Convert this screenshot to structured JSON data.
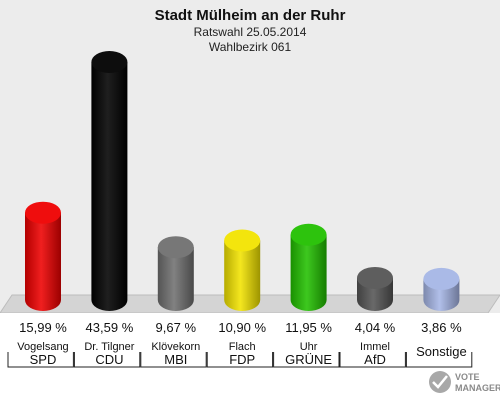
{
  "header": {
    "title": "Stadt Mülheim an der Ruhr",
    "subtitle": "Ratswahl 25.05.2014",
    "district": "Wahlbezirk 061"
  },
  "watermark": {
    "line1": "VOTE",
    "line2": "MANAGER"
  },
  "chart_data": {
    "type": "bar",
    "title": "Stadt Mülheim an der Ruhr",
    "subtitle": "Ratswahl 25.05.2014 · Wahlbezirk 061",
    "ylim": [
      0,
      45
    ],
    "grid": false,
    "legend": "none",
    "bars": [
      {
        "candidate": "Vogelsang",
        "party": "SPD",
        "value": 15.99,
        "label": "15,99 %",
        "color": "#ee0000"
      },
      {
        "candidate": "Dr. Tilgner",
        "party": "CDU",
        "value": 43.59,
        "label": "43,59 %",
        "color": "#000000"
      },
      {
        "candidate": "Klövekorn",
        "party": "MBI",
        "value": 9.67,
        "label": "9,67 %",
        "color": "#707070"
      },
      {
        "candidate": "Flach",
        "party": "FDP",
        "value": 10.9,
        "label": "10,90 %",
        "color": "#f2e400"
      },
      {
        "candidate": "Uhr",
        "party": "GRÜNE",
        "value": 11.95,
        "label": "11,95 %",
        "color": "#22c000"
      },
      {
        "candidate": "Immel",
        "party": "AfD",
        "value": 4.04,
        "label": "4,04 %",
        "color": "#555555"
      },
      {
        "candidate": "",
        "party": "Sonstige",
        "value": 3.86,
        "label": "3,86 %",
        "color": "#a6b6e6"
      }
    ]
  }
}
